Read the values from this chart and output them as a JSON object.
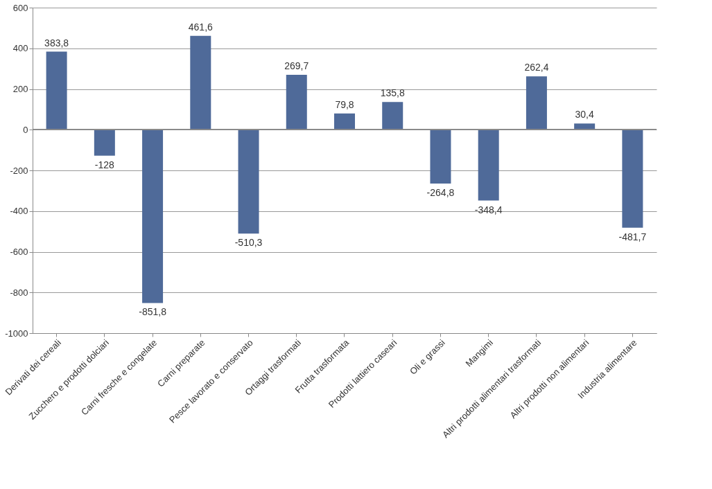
{
  "chart_data": {
    "type": "bar",
    "categories": [
      "Derivati dei cereali",
      "Zucchero e prodotti dolciari",
      "Carni fresche e congelate",
      "Carni preparate",
      "Pesce lavorato e conservato",
      "Ortaggi trasformati",
      "Frutta trasformata",
      "Prodotti lattiero caseari",
      "Oli e grassi",
      "Mangimi",
      "Altri prodotti alimentari trasformati",
      "Altri prodotti non alimentari",
      "Industria alimentare"
    ],
    "values": [
      383.8,
      -128,
      -851.8,
      461.6,
      -510.3,
      269.7,
      79.8,
      135.8,
      -264.8,
      -348.4,
      262.4,
      30.4,
      -481.7
    ],
    "value_labels": [
      "383,8",
      "-128",
      "-851,8",
      "461,6",
      "-510,3",
      "269,7",
      "79,8",
      "135,8",
      "-264,8",
      "-348,4",
      "262,4",
      "30,4",
      "-481,7"
    ],
    "color": "#4f6a99",
    "ylim": [
      -1000,
      600
    ],
    "yticks": [
      -1000,
      -800,
      -600,
      -400,
      -200,
      0,
      200,
      400,
      600
    ],
    "grid": "y"
  }
}
